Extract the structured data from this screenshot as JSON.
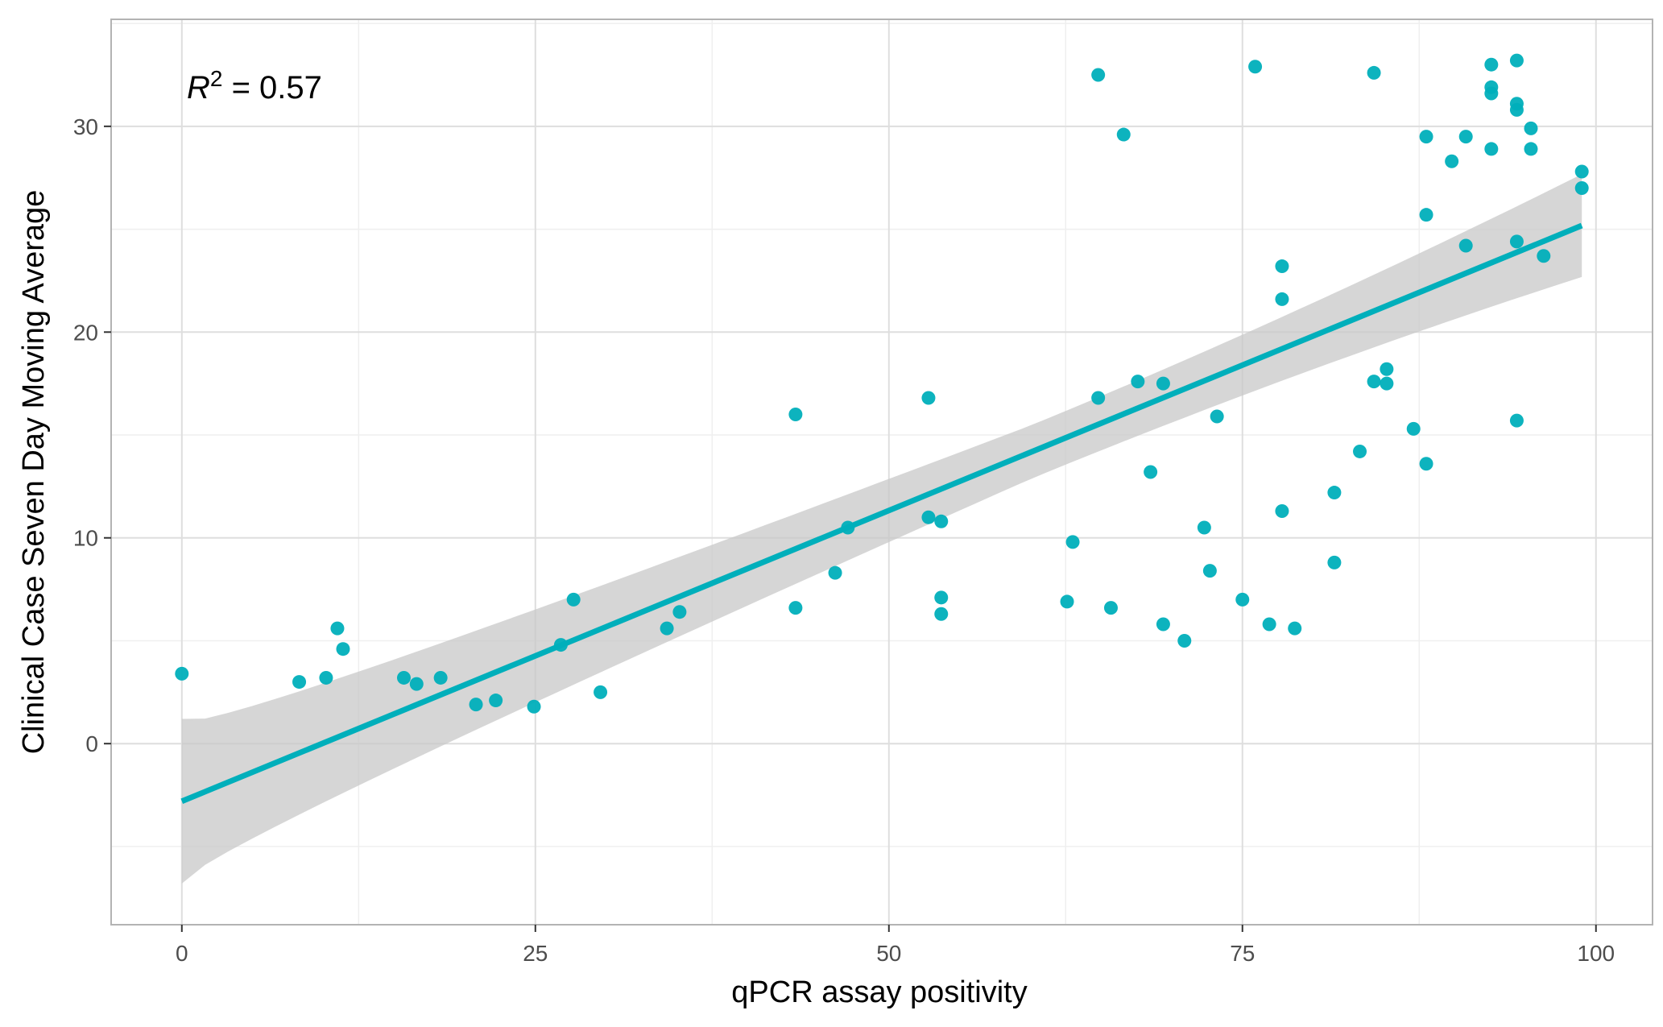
{
  "colors": {
    "point": "#00AFBB",
    "line": "#00AFBB",
    "band": "#C8C8C8",
    "grid_major": "#DEDEDE",
    "grid_minor": "#EFEFEF",
    "panel_border": "#B3B3B3"
  },
  "chart_data": {
    "type": "scatter",
    "xlabel": "qPCR assay positivity",
    "ylabel": "Clinical Case Seven Day Moving Average",
    "xlim": [
      -5,
      104
    ],
    "ylim": [
      -8.8,
      35.2
    ],
    "x_ticks": [
      0,
      25,
      50,
      75,
      100
    ],
    "y_ticks": [
      0,
      10,
      20,
      30
    ],
    "grid": true,
    "annotation": {
      "r_symbol": "R",
      "exponent": "2",
      "value_text": " = 0.57"
    },
    "regression": {
      "x_range": [
        0,
        99
      ],
      "intercept": -2.8,
      "slope": 0.2826,
      "se_low": 4.0,
      "se_mid": 1.3,
      "se_high": 2.5,
      "x_center": 60
    },
    "points": [
      [
        0,
        3.4
      ],
      [
        8.3,
        3.0
      ],
      [
        10.2,
        3.2
      ],
      [
        11.0,
        5.6
      ],
      [
        11.4,
        4.6
      ],
      [
        15.7,
        3.2
      ],
      [
        16.6,
        2.9
      ],
      [
        18.3,
        3.2
      ],
      [
        20.8,
        1.9
      ],
      [
        22.2,
        2.1
      ],
      [
        24.9,
        1.8
      ],
      [
        26.8,
        4.8
      ],
      [
        27.7,
        7.0
      ],
      [
        29.6,
        2.5
      ],
      [
        34.3,
        5.6
      ],
      [
        35.2,
        6.4
      ],
      [
        43.4,
        16.0
      ],
      [
        43.4,
        6.6
      ],
      [
        46.2,
        8.3
      ],
      [
        47.1,
        10.5
      ],
      [
        52.8,
        16.8
      ],
      [
        52.8,
        11.0
      ],
      [
        53.7,
        10.8
      ],
      [
        53.7,
        7.1
      ],
      [
        53.7,
        6.3
      ],
      [
        62.6,
        6.9
      ],
      [
        63.0,
        9.8
      ],
      [
        64.8,
        32.5
      ],
      [
        64.8,
        16.8
      ],
      [
        65.7,
        6.6
      ],
      [
        66.6,
        29.6
      ],
      [
        67.6,
        17.6
      ],
      [
        68.5,
        13.2
      ],
      [
        69.4,
        17.5
      ],
      [
        69.4,
        5.8
      ],
      [
        70.9,
        5.0
      ],
      [
        72.3,
        10.5
      ],
      [
        72.7,
        8.4
      ],
      [
        73.2,
        15.9
      ],
      [
        75.0,
        7.0
      ],
      [
        75.9,
        32.9
      ],
      [
        76.9,
        5.8
      ],
      [
        77.8,
        23.2
      ],
      [
        77.8,
        21.6
      ],
      [
        77.8,
        11.3
      ],
      [
        78.7,
        5.6
      ],
      [
        81.5,
        12.2
      ],
      [
        81.5,
        8.8
      ],
      [
        83.3,
        14.2
      ],
      [
        84.3,
        32.6
      ],
      [
        84.3,
        17.6
      ],
      [
        85.2,
        18.2
      ],
      [
        85.2,
        17.5
      ],
      [
        87.1,
        15.3
      ],
      [
        88.0,
        29.5
      ],
      [
        88.0,
        25.7
      ],
      [
        88.0,
        13.6
      ],
      [
        89.8,
        28.3
      ],
      [
        90.8,
        29.5
      ],
      [
        90.8,
        24.2
      ],
      [
        92.6,
        33.0
      ],
      [
        92.6,
        31.9
      ],
      [
        92.6,
        31.6
      ],
      [
        92.6,
        28.9
      ],
      [
        94.4,
        33.2
      ],
      [
        94.4,
        31.1
      ],
      [
        94.4,
        30.8
      ],
      [
        94.4,
        24.4
      ],
      [
        94.4,
        15.7
      ],
      [
        95.4,
        29.9
      ],
      [
        95.4,
        28.9
      ],
      [
        96.3,
        23.7
      ],
      [
        99.0,
        27.8
      ],
      [
        99.0,
        27.0
      ]
    ]
  }
}
